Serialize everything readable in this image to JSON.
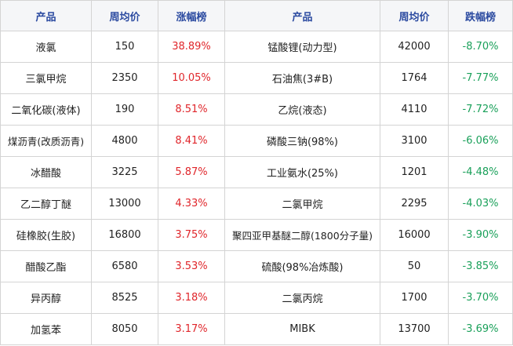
{
  "headers": {
    "left_product": "产品",
    "left_price": "周均价",
    "left_change": "涨幅榜",
    "right_product": "产品",
    "right_price": "周均价",
    "right_change": "跌幅榜"
  },
  "colors": {
    "rise": "#e0262b",
    "fall": "#1aa05a",
    "header_text": "#2b4aa0"
  },
  "rows": [
    {
      "gain_name": "液氯",
      "gain_price": "150",
      "gain_pct": "38.89%",
      "loss_name": "锰酸锂(动力型)",
      "loss_price": "42000",
      "loss_pct": "-8.70%"
    },
    {
      "gain_name": "三氯甲烷",
      "gain_price": "2350",
      "gain_pct": "10.05%",
      "loss_name": "石油焦(3#B)",
      "loss_price": "1764",
      "loss_pct": "-7.77%"
    },
    {
      "gain_name": "二氧化碳(液体)",
      "gain_price": "190",
      "gain_pct": "8.51%",
      "loss_name": "乙烷(液态)",
      "loss_price": "4110",
      "loss_pct": "-7.72%"
    },
    {
      "gain_name": "煤沥青(改质沥青)",
      "gain_price": "4800",
      "gain_pct": "8.41%",
      "loss_name": "磷酸三钠(98%)",
      "loss_price": "3100",
      "loss_pct": "-6.06%"
    },
    {
      "gain_name": "冰醋酸",
      "gain_price": "3225",
      "gain_pct": "5.87%",
      "loss_name": "工业氨水(25%)",
      "loss_price": "1201",
      "loss_pct": "-4.48%"
    },
    {
      "gain_name": "乙二醇丁醚",
      "gain_price": "13000",
      "gain_pct": "4.33%",
      "loss_name": "二氯甲烷",
      "loss_price": "2295",
      "loss_pct": "-4.03%"
    },
    {
      "gain_name": "硅橡胶(生胶)",
      "gain_price": "16800",
      "gain_pct": "3.75%",
      "loss_name": "聚四亚甲基醚二醇(1800分子量)",
      "loss_price": "16000",
      "loss_pct": "-3.90%"
    },
    {
      "gain_name": "醋酸乙酯",
      "gain_price": "6580",
      "gain_pct": "3.53%",
      "loss_name": "硫酸(98%冶炼酸)",
      "loss_price": "50",
      "loss_pct": "-3.85%"
    },
    {
      "gain_name": "异丙醇",
      "gain_price": "8525",
      "gain_pct": "3.18%",
      "loss_name": "二氯丙烷",
      "loss_price": "1700",
      "loss_pct": "-3.70%"
    },
    {
      "gain_name": "加氢苯",
      "gain_price": "8050",
      "gain_pct": "3.17%",
      "loss_name": "MIBK",
      "loss_price": "13700",
      "loss_pct": "-3.69%"
    }
  ]
}
